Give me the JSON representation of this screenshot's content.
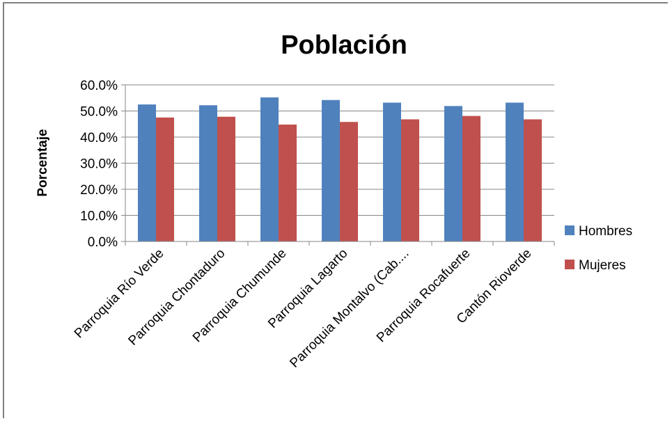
{
  "chart_data": {
    "type": "bar",
    "title": "Población",
    "xlabel": "",
    "ylabel": "Porcentaje",
    "ylim": [
      0,
      60
    ],
    "yticks": [
      "0.0%",
      "10.0%",
      "20.0%",
      "30.0%",
      "40.0%",
      "50.0%",
      "60.0%"
    ],
    "grid": true,
    "legend_position": "right",
    "categories": [
      "Parroquia Río Verde",
      "Parroquia Chontaduro",
      "Parroquia Chumunde",
      "Parroquia Lagarto",
      "Parroquia Montalvo (Cab....",
      "Parroquia Rocafuerte",
      "Cantón Rioverde"
    ],
    "series": [
      {
        "name": "Hombres",
        "color": "#4f81bd",
        "values": [
          52.5,
          52.2,
          55.2,
          54.2,
          53.2,
          51.9,
          53.2
        ]
      },
      {
        "name": "Mujeres",
        "color": "#c0504d",
        "values": [
          47.5,
          47.8,
          44.8,
          45.8,
          46.8,
          48.1,
          46.8
        ]
      }
    ]
  }
}
